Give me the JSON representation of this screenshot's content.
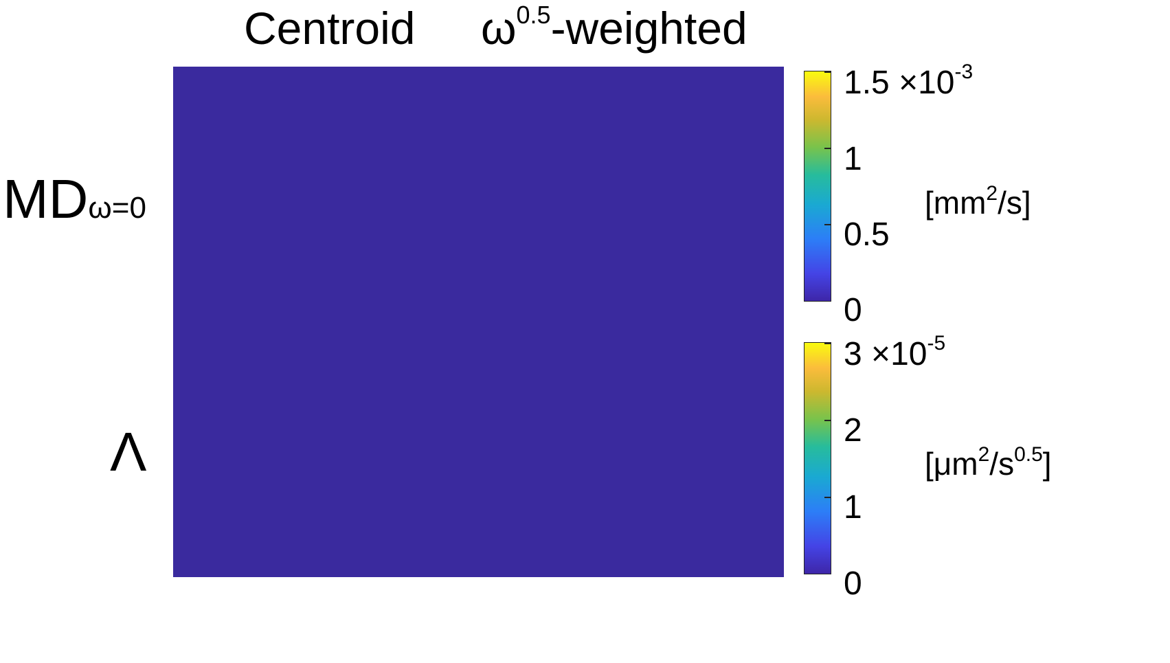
{
  "columns": {
    "left": "Centroid",
    "right_base": "ω",
    "right_sup": "0.5",
    "right_tail": "-weighted"
  },
  "rows": {
    "top_main": "MD",
    "top_sub": "ω=0",
    "bottom": "Λ"
  },
  "colorbar_top": {
    "ticks": [
      "1.5",
      "1",
      "0.5",
      "0"
    ],
    "exponent_base": "×10",
    "exponent_sup": "-3",
    "unit_pre": "[mm",
    "unit_sup": "2",
    "unit_post": "/s]"
  },
  "colorbar_bottom": {
    "ticks": [
      "3",
      "2",
      "1",
      "0"
    ],
    "exponent_base": "×10",
    "exponent_sup": "-5",
    "unit_pre": "[μm",
    "unit_sup": "2",
    "unit_mid": "/s",
    "unit_sup2": "0.5",
    "unit_post": "]"
  },
  "colors": {
    "background": "#3a2a9e",
    "parula_low": "#3e26a8",
    "parula_mid": "#1fb5b2",
    "parula_high": "#f9fb0e"
  }
}
